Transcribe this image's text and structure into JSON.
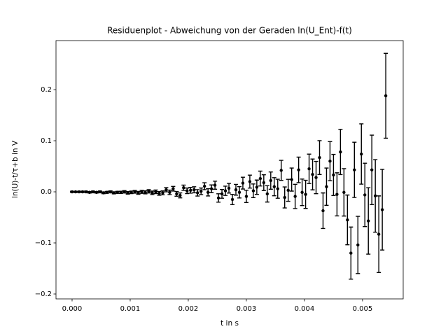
{
  "chart_data": {
    "type": "errorbar",
    "title": "Residuenplot - Abweichung von der Geraden ln(U_Ent)-f(t)",
    "x_label": "t in s",
    "y_label": "ln(U)-t/τ+b in V",
    "color": "#000000",
    "x": [
      0,
      6e-05,
      0.00012,
      0.00018,
      0.00024,
      0.0003,
      0.00036,
      0.00042,
      0.00048,
      0.00054,
      0.0006,
      0.00066,
      0.00072,
      0.00078,
      0.00084,
      0.0009,
      0.00096,
      0.00102,
      0.00108,
      0.00114,
      0.0012,
      0.00126,
      0.00132,
      0.00138,
      0.00144,
      0.0015,
      0.00156,
      0.00162,
      0.00168,
      0.00174,
      0.0018,
      0.00186,
      0.00192,
      0.00198,
      0.00204,
      0.0021,
      0.00216,
      0.00222,
      0.00228,
      0.00234,
      0.0024,
      0.00246,
      0.00252,
      0.00258,
      0.00264,
      0.0027,
      0.00276,
      0.00282,
      0.00288,
      0.00294,
      0.003,
      0.00306,
      0.00312,
      0.00318,
      0.00324,
      0.0033,
      0.00336,
      0.00342,
      0.00348,
      0.00354,
      0.0036,
      0.00366,
      0.00372,
      0.00378,
      0.00384,
      0.0039,
      0.00396,
      0.00402,
      0.00408,
      0.00414,
      0.0042,
      0.00426,
      0.00432,
      0.00438,
      0.00444,
      0.0045,
      0.00456,
      0.00462,
      0.00468,
      0.00474,
      0.0048,
      0.00486,
      0.00492,
      0.00498,
      0.00504,
      0.0051,
      0.00516,
      0.00522,
      0.00528,
      0.00534,
      0.0054
    ],
    "values": [
      0,
      0,
      0,
      0,
      0,
      -0.001,
      0,
      -0.001,
      0,
      -0.002,
      -0.001,
      0,
      -0.002,
      -0.001,
      -0.001,
      0,
      -0.002,
      -0.001,
      0,
      -0.002,
      0,
      -0.001,
      0.001,
      -0.002,
      0,
      -0.003,
      -0.002,
      0.004,
      -0.001,
      0.006,
      -0.004,
      -0.007,
      0.008,
      0.002,
      0.003,
      0.004,
      -0.002,
      0.001,
      0.011,
      -0.001,
      0.006,
      0.013,
      -0.012,
      -0.004,
      0.002,
      0.007,
      -0.015,
      0.004,
      -0.001,
      0.017,
      -0.009,
      0.02,
      0.002,
      0.009,
      0.026,
      0.018,
      -0.004,
      0.022,
      0.01,
      0.006,
      0.042,
      -0.011,
      0.003,
      0.024,
      -0.009,
      0.043,
      -0.001,
      -0.005,
      0.045,
      0.034,
      0.028,
      0.067,
      -0.037,
      0.01,
      0.06,
      0.033,
      -0.005,
      0.078,
      -0.001,
      -0.055,
      -0.12,
      0.043,
      -0.104,
      0.074,
      -0.006,
      -0.057,
      0.043,
      -0.008,
      -0.083,
      -0.035,
      0.188
    ],
    "errors": [
      0.0011,
      0.0012,
      0.0012,
      0.0013,
      0.0013,
      0.0014,
      0.0015,
      0.0015,
      0.0016,
      0.0017,
      0.0018,
      0.0019,
      0.0019,
      0.002,
      0.0021,
      0.0023,
      0.0024,
      0.0025,
      0.0026,
      0.0028,
      0.0029,
      0.003,
      0.0032,
      0.0034,
      0.0035,
      0.0037,
      0.0039,
      0.0041,
      0.0043,
      0.0045,
      0.0046,
      0.0049,
      0.0051,
      0.0054,
      0.0056,
      0.0059,
      0.0062,
      0.0065,
      0.0068,
      0.0071,
      0.0075,
      0.0079,
      0.0082,
      0.0086,
      0.0091,
      0.0095,
      0.01,
      0.0105,
      0.011,
      0.0115,
      0.012,
      0.0127,
      0.0133,
      0.014,
      0.0146,
      0.0154,
      0.016,
      0.0169,
      0.0177,
      0.0186,
      0.0196,
      0.0205,
      0.0215,
      0.0226,
      0.0237,
      0.025,
      0.026,
      0.0275,
      0.0288,
      0.0302,
      0.0316,
      0.0332,
      0.0348,
      0.0365,
      0.0383,
      0.0402,
      0.0422,
      0.0443,
      0.0464,
      0.0487,
      0.051,
      0.054,
      0.056,
      0.059,
      0.062,
      0.065,
      0.068,
      0.071,
      0.075,
      0.079,
      0.083
    ],
    "xlim": [
      -0.000277,
      0.0057
    ],
    "ylim": [
      -0.2096,
      0.296
    ],
    "xticks": [
      {
        "value": 0,
        "label": "0.000"
      },
      {
        "value": 0.001,
        "label": "0.001"
      },
      {
        "value": 0.002,
        "label": "0.002"
      },
      {
        "value": 0.003,
        "label": "0.003"
      },
      {
        "value": 0.004,
        "label": "0.004"
      },
      {
        "value": 0.005,
        "label": "0.005"
      }
    ],
    "yticks": [
      {
        "value": -0.2,
        "label": "−0.2"
      },
      {
        "value": -0.1,
        "label": "−0.1"
      },
      {
        "value": 0,
        "label": "0.0"
      },
      0.1,
      0.2
    ]
  }
}
